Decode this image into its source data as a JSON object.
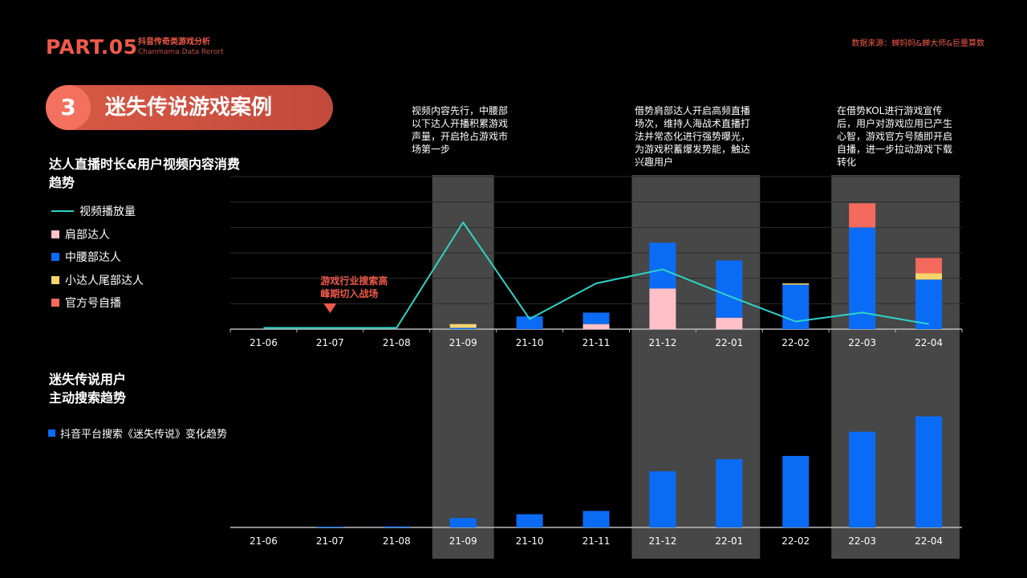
{
  "header": {
    "part": "PART.05",
    "subtitle_cn": "抖音传奇类游戏分析",
    "subtitle_en": "Chanmama Data Rerort",
    "source": "数据来源：蝉妈妈&蝉大师&巨量算数"
  },
  "banner": {
    "number": "3",
    "title": "迷失传说游戏案例"
  },
  "section1": {
    "title": "达人直播时长&用户视频内容消费趋势"
  },
  "section2": {
    "title": "迷失传说用户\n主动搜索趋势"
  },
  "notes": [
    "视频内容先行，中腰部以下达人开播积累游戏声量，开启抢占游戏市场第一步",
    "借势肩部达人开启高频直播场次，维持人海战术直播打法并常态化进行强势曝光，为游戏积蓄爆发势能，触达兴趣用户",
    "在借势KOL进行游戏宣传后，用户对游戏应用已产生心智，游戏官方号随即开启自播，进一步拉动游戏下载转化"
  ],
  "annotation": {
    "text_line1": "游戏行业搜索高",
    "text_line2": "峰期切入战场",
    "category": "21-07"
  },
  "colors": {
    "accent": "#f05a4a",
    "line": "#2ed3c6",
    "shoulder": "#ffc0c8",
    "mid_waist": "#0a6cf5",
    "small_tail": "#f7d56c",
    "official": "#f46a5c",
    "highlight_band": "#474747"
  },
  "chart_data": [
    {
      "type": "bar",
      "stacked": true,
      "categories": [
        "21-06",
        "21-07",
        "21-08",
        "21-09",
        "21-10",
        "21-11",
        "21-12",
        "22-01",
        "22-02",
        "22-03",
        "22-04"
      ],
      "highlight_categories": [
        "21-09",
        "21-12",
        "22-01",
        "22-03",
        "22-04"
      ],
      "ylim": [
        0,
        6
      ],
      "grid": true,
      "series": [
        {
          "name": "肩部达人",
          "values": [
            0,
            0,
            0,
            0,
            0,
            0.2,
            1.6,
            0.45,
            0,
            0,
            0
          ]
        },
        {
          "name": "中腰部达人",
          "values": [
            0,
            0,
            0,
            0.05,
            0.5,
            0.45,
            1.8,
            2.25,
            1.75,
            4.0,
            1.95
          ]
        },
        {
          "name": "小达人尾部达人",
          "values": [
            0,
            0,
            0,
            0.15,
            0,
            0,
            0,
            0,
            0.05,
            0,
            0.25
          ]
        },
        {
          "name": "官方号自播",
          "values": [
            0,
            0,
            0,
            0,
            0,
            0,
            0,
            0,
            0,
            0.95,
            0.6
          ]
        }
      ],
      "line_series": {
        "name": "视频播放量",
        "values": [
          0.05,
          0.05,
          0.05,
          4.2,
          0.4,
          1.8,
          2.35,
          1.3,
          0.3,
          0.65,
          0.2
        ]
      }
    },
    {
      "type": "bar",
      "categories": [
        "21-06",
        "21-07",
        "21-08",
        "21-09",
        "21-10",
        "21-11",
        "21-12",
        "22-01",
        "22-02",
        "22-03",
        "22-04"
      ],
      "highlight_categories": [
        "21-09",
        "21-12",
        "22-01",
        "22-03",
        "22-04"
      ],
      "ylim": [
        0,
        100
      ],
      "series": [
        {
          "name": "抖音平台搜索《迷失传说》变化趋势",
          "values": [
            0,
            0.5,
            1,
            8.5,
            12,
            15,
            51,
            62,
            65,
            87,
            101
          ]
        }
      ]
    }
  ]
}
